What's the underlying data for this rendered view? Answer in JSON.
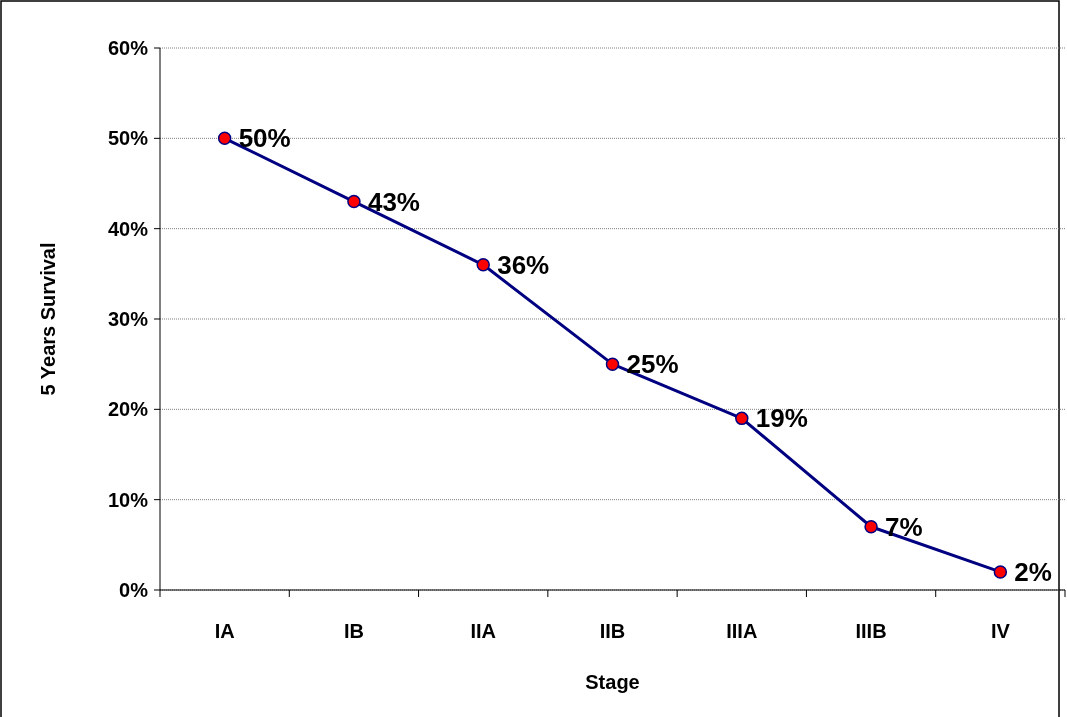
{
  "chart_data": {
    "type": "line",
    "xlabel": "Stage",
    "ylabel": "5 Years Survival",
    "categories": [
      "IA",
      "IB",
      "IIA",
      "IIB",
      "IIIA",
      "IIIB",
      "IV"
    ],
    "series": [
      {
        "color": "#000080",
        "values": [
          50,
          43,
          36,
          25,
          19,
          7,
          2
        ],
        "value_labels": [
          "50%",
          "43%",
          "36%",
          "25%",
          "19%",
          "7%",
          "2%"
        ],
        "colors": [
          "#ff0000",
          "#ff0000",
          "#ff0000",
          "#ff0000",
          "#ff0000",
          "#ff0000",
          "#ff0000"
        ]
      }
    ],
    "ylim": [
      0,
      60
    ],
    "yticks": [
      {
        "value": 0,
        "label": "0%"
      },
      {
        "value": 10,
        "label": "10%"
      },
      {
        "value": 20,
        "label": "20%"
      },
      {
        "value": 30,
        "label": "30%"
      },
      {
        "value": 40,
        "label": "40%"
      },
      {
        "value": 50,
        "label": "50%"
      },
      {
        "value": 60,
        "label": "60%"
      }
    ],
    "grid": "y",
    "marker": "circle",
    "line_style": "solid"
  }
}
